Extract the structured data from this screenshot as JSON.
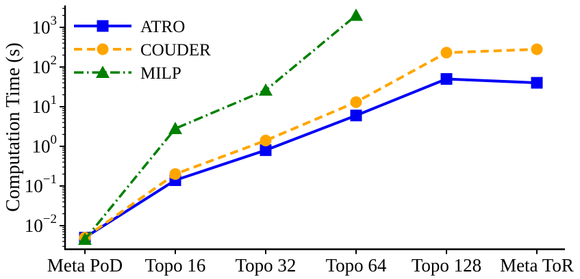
{
  "chart_data": {
    "type": "line",
    "title": "",
    "xlabel": "",
    "ylabel": "Computation Time (s)",
    "yscale": "log",
    "ylim": [
      0.0026,
      3500
    ],
    "yticks": [
      1000,
      100,
      10,
      1,
      0.1,
      0.01
    ],
    "grid": false,
    "legend_position": "upper left",
    "axis_color": "#000000",
    "text_color": "#000000",
    "categories": [
      "Meta PoD",
      "Topo 16",
      "Topo 32",
      "Topo 64",
      "Topo 128",
      "Meta ToR"
    ],
    "series": [
      {
        "name": "ATRO",
        "color": "#0000f5",
        "linestyle": "solid",
        "marker": "square",
        "values": [
          0.005,
          0.14,
          0.8,
          6,
          50,
          40
        ]
      },
      {
        "name": "COUDER",
        "color": "#ffa500",
        "linestyle": "dashed",
        "marker": "circle",
        "values": [
          0.005,
          0.2,
          1.4,
          13,
          230,
          280
        ]
      },
      {
        "name": "MILP",
        "color": "#008000",
        "linestyle": "dashdot",
        "marker": "triangle",
        "values": [
          0.0045,
          2.8,
          26,
          2000,
          null,
          null
        ]
      }
    ]
  }
}
